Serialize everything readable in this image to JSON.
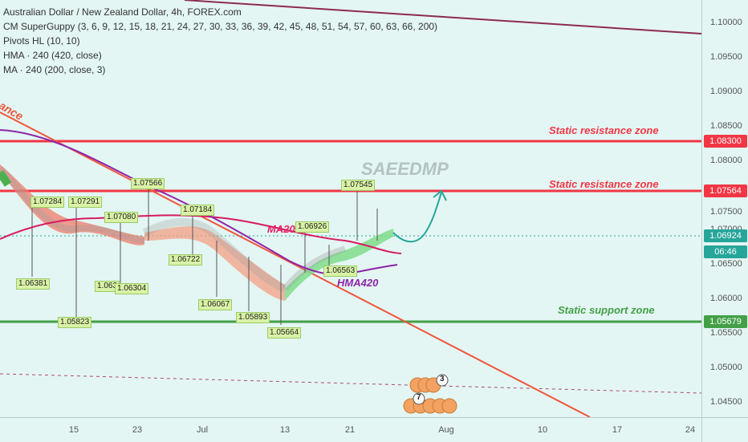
{
  "legend": {
    "title": "Australian Dollar / New Zealand Dollar, 4h, FOREX.com",
    "indicators": [
      "CM SuperGuppy (3, 6, 9, 12, 15, 18, 21, 24, 27, 30, 33, 36, 39, 42, 45, 48, 51, 54, 57, 60, 63, 66, 200)",
      "Pivots HL (10, 10)",
      "HMA · 240 (420, close)",
      "MA · 240 (200, close, 3)"
    ]
  },
  "watermark": "SAEEDMP",
  "price_axis": {
    "ticks": [
      "1.10000",
      "1.09500",
      "1.09000",
      "1.08500",
      "1.08000",
      "1.07500",
      "1.07000",
      "1.06500",
      "1.06000",
      "1.05500",
      "1.05000",
      "1.04500"
    ],
    "labels": [
      {
        "text": "1.08300",
        "color": "#f23645"
      },
      {
        "text": "1.07564",
        "color": "#f23645"
      },
      {
        "text": "1.06924",
        "color": "#26a69a"
      },
      {
        "text": "06:46",
        "color": "#26a69a"
      },
      {
        "text": "1.05679",
        "color": "#43a047"
      }
    ]
  },
  "time_axis": {
    "ticks": [
      "15",
      "23",
      "Jul",
      "13",
      "21",
      "Aug",
      "10",
      "17",
      "24"
    ]
  },
  "zones": [
    {
      "text": "Static resistance zone",
      "color": "#f23645"
    },
    {
      "text": "Static resistance zone",
      "color": "#f23645"
    },
    {
      "text": "Static support zone",
      "color": "#43a047"
    }
  ],
  "trend_label": "ance",
  "ma_labels": [
    {
      "text": "MA200",
      "color": "#e91e63"
    },
    {
      "text": "HMA420",
      "color": "#8e24aa"
    }
  ],
  "pivots": [
    "1.07284",
    "1.07291",
    "1.07080",
    "1.07566",
    "1.07184",
    "1.06722",
    "1.06381",
    "1.063",
    "1.06304",
    "1.05823",
    "1.06067",
    "1.05893",
    "1.05664",
    "1.06926",
    "1.06563",
    "1.07545"
  ],
  "event_badges": [
    "3",
    "7"
  ],
  "colors": {
    "background": "#e3f6f3",
    "resistance": "#f23645",
    "support": "#43a047",
    "ma200": "#d81b60",
    "hma420": "#8e24aa",
    "projection": "#26a69a"
  }
}
